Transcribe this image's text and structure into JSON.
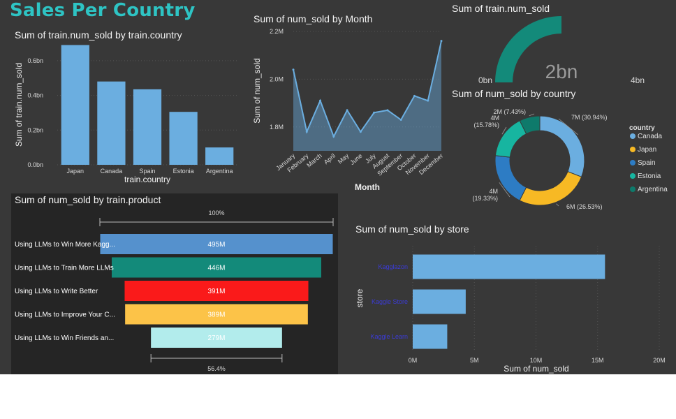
{
  "title": "Sales Per Country",
  "chart_data": [
    {
      "type": "bar",
      "title": "Sum of train.num_sold by train.country",
      "xlabel": "train.country",
      "ylabel": "Sum of train.num_sold",
      "categories": [
        "Japan",
        "Canada",
        "Spain",
        "Estonia",
        "Argentina"
      ],
      "values": [
        0.69,
        0.48,
        0.435,
        0.305,
        0.1
      ],
      "ylim": [
        0,
        0.7
      ],
      "yticks": [
        "0.0bn",
        "0.2bn",
        "0.4bn",
        "0.6bn"
      ],
      "ytick_values": [
        0,
        0.2,
        0.4,
        0.6
      ],
      "color": "#6baee0"
    },
    {
      "type": "area",
      "title": "Sum of num_sold by Month",
      "xlabel": "Month",
      "ylabel": "Sum of num_sold",
      "categories": [
        "January",
        "February",
        "March",
        "April",
        "May",
        "June",
        "July",
        "August",
        "September",
        "October",
        "November",
        "December"
      ],
      "values": [
        2.04,
        1.78,
        1.91,
        1.76,
        1.87,
        1.78,
        1.86,
        1.87,
        1.83,
        1.93,
        1.91,
        2.16
      ],
      "ylim": [
        1.7,
        2.2
      ],
      "yticks": [
        "1.8M",
        "2.0M",
        "2.2M"
      ],
      "ytick_values": [
        1.8,
        2.0,
        2.2
      ],
      "color": "#6baee0"
    },
    {
      "type": "gauge",
      "title": "Sum of train.num_sold",
      "value_label": "2bn",
      "min_label": "0bn",
      "max_label": "4bn",
      "value": 2,
      "max": 4,
      "color": "#138a7a"
    },
    {
      "type": "pie",
      "title": "Sum of num_sold by country",
      "legend_title": "country",
      "legend_position": "right",
      "slices": [
        {
          "name": "Canada",
          "percent": 30.94,
          "label": "7M (30.94%)",
          "color": "#6baee0"
        },
        {
          "name": "Japan",
          "percent": 26.53,
          "label": "6M (26.53%)",
          "color": "#f7b924"
        },
        {
          "name": "Spain",
          "percent": 19.33,
          "label": "4M (19.33%)",
          "color": "#2d7cc4"
        },
        {
          "name": "Estonia",
          "percent": 15.78,
          "label": "4M (15.78%)",
          "color": "#17b5a0"
        },
        {
          "name": "Argentina",
          "percent": 7.43,
          "label": "2M (7.43%)",
          "color": "#0e7a6b"
        }
      ]
    },
    {
      "type": "funnel",
      "title": "Sum of num_sold by train.product",
      "top_percent": "100%",
      "bottom_percent": "56.4%",
      "stages": [
        {
          "name": "Using LLMs to Win More Kagg...",
          "value": 495,
          "label": "495M",
          "color": "#5591cd"
        },
        {
          "name": "Using LLMs to Train More LLMs",
          "value": 446,
          "label": "446M",
          "color": "#138a7a"
        },
        {
          "name": "Using LLMs to Write Better",
          "value": 391,
          "label": "391M",
          "color": "#fa1a1a"
        },
        {
          "name": "Using LLMs to Improve Your C...",
          "value": 389,
          "label": "389M",
          "color": "#fcc348"
        },
        {
          "name": "Using LLMs to Win Friends an...",
          "value": 279,
          "label": "279M",
          "color": "#b2ecec"
        }
      ]
    },
    {
      "type": "bar",
      "orientation": "horizontal",
      "title": "Sum of num_sold by store",
      "xlabel": "Sum of num_sold",
      "ylabel": "store",
      "categories": [
        "Kagglazon",
        "Kaggle Store",
        "Kaggle Learn"
      ],
      "values": [
        15.6,
        4.3,
        2.8
      ],
      "xlim": [
        0,
        20
      ],
      "xticks": [
        "0M",
        "5M",
        "10M",
        "15M",
        "20M"
      ],
      "xtick_values": [
        0,
        5,
        10,
        15,
        20
      ],
      "color": "#6baee0"
    }
  ]
}
